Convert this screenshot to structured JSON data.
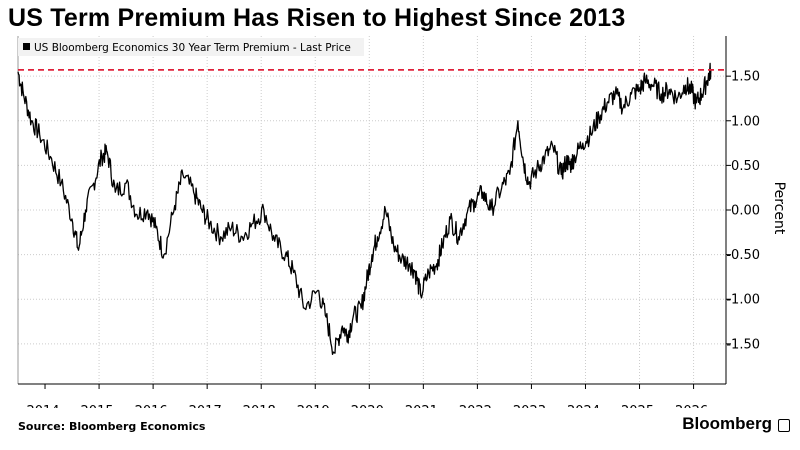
{
  "title": "US Term Premium Has Risen to Highest Since 2013",
  "source": "Source: Bloomberg Economics",
  "brand": "Bloomberg",
  "chart_data": {
    "type": "line",
    "legend": "US Bloomberg Economics 30 Year Term Premium - Last Price",
    "legend_placement": "top-left",
    "ylabel": "Percent",
    "y_axis_side": "right",
    "ylim": [
      -1.95,
      1.95
    ],
    "xlim": [
      2013.5,
      2026.6
    ],
    "y_ticks": [
      1.5,
      1.0,
      0.5,
      0.0,
      -0.5,
      -1.0,
      -1.5
    ],
    "y_tick_labels": [
      "1.50",
      "1.00",
      "0.50",
      "0.00",
      "-0.50",
      "-1.00",
      "-1.50"
    ],
    "x_ticks": [
      2014,
      2015,
      2016,
      2017,
      2018,
      2019,
      2020,
      2021,
      2022,
      2023,
      2024,
      2025,
      2026
    ],
    "x_tick_labels": [
      "2014",
      "2015",
      "2016",
      "2017",
      "2018",
      "2019",
      "2020",
      "2021",
      "2022",
      "2023",
      "2024",
      "2025",
      "2026"
    ],
    "grid": true,
    "reference_line": {
      "y": 1.57,
      "color": "#e0203a",
      "style": "dashed"
    },
    "series": [
      {
        "color": "#000000",
        "x": [
          2013.5,
          2013.6,
          2013.75,
          2013.9,
          2014.1,
          2014.3,
          2014.5,
          2014.62,
          2014.75,
          2014.9,
          2015.05,
          2015.15,
          2015.3,
          2015.5,
          2015.7,
          2015.9,
          2016.05,
          2016.2,
          2016.4,
          2016.55,
          2016.75,
          2016.9,
          2017.05,
          2017.25,
          2017.45,
          2017.65,
          2017.85,
          2018.05,
          2018.25,
          2018.45,
          2018.6,
          2018.8,
          2019.05,
          2019.2,
          2019.35,
          2019.5,
          2019.6,
          2019.7,
          2019.85,
          2019.95,
          2020.05,
          2020.15,
          2020.3,
          2020.45,
          2020.6,
          2020.75,
          2020.85,
          2020.95,
          2021.1,
          2021.25,
          2021.35,
          2021.5,
          2021.65,
          2021.8,
          2021.95,
          2022.1,
          2022.25,
          2022.45,
          2022.6,
          2022.75,
          2022.85,
          2022.95,
          2023.1,
          2023.25,
          2023.4,
          2023.55,
          2023.65,
          2023.72,
          2023.8,
          2023.95,
          2024.1,
          2024.25,
          2024.4,
          2024.55,
          2024.7,
          2024.85,
          2025.0,
          2025.1,
          2025.25,
          2025.4,
          2025.55,
          2025.7,
          2025.85,
          2025.95,
          2026.05,
          2026.15,
          2026.25,
          2026.32
        ],
        "y": [
          1.55,
          1.3,
          1.0,
          0.85,
          0.6,
          0.3,
          -0.1,
          -0.45,
          0.0,
          0.3,
          0.6,
          0.65,
          0.2,
          0.3,
          -0.05,
          0.0,
          -0.2,
          -0.5,
          0.05,
          0.4,
          0.2,
          0.0,
          -0.15,
          -0.3,
          -0.2,
          -0.3,
          -0.15,
          0.0,
          -0.35,
          -0.5,
          -0.7,
          -1.1,
          -0.9,
          -1.2,
          -1.6,
          -1.3,
          -1.4,
          -1.2,
          -1.1,
          -0.8,
          -0.5,
          -0.3,
          0.0,
          -0.4,
          -0.55,
          -0.6,
          -0.7,
          -0.95,
          -0.7,
          -0.6,
          -0.4,
          -0.1,
          -0.3,
          -0.05,
          0.1,
          0.2,
          0.0,
          0.25,
          0.4,
          1.0,
          0.55,
          0.3,
          0.45,
          0.6,
          0.7,
          0.4,
          0.55,
          0.5,
          0.6,
          0.75,
          0.85,
          1.05,
          1.2,
          1.3,
          1.15,
          1.3,
          1.35,
          1.45,
          1.4,
          1.3,
          1.35,
          1.25,
          1.4,
          1.35,
          1.2,
          1.3,
          1.45,
          1.57
        ]
      }
    ]
  }
}
